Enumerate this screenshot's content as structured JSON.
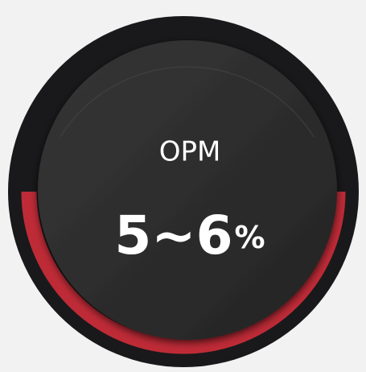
{
  "label": "OPM",
  "value_text": "5~6",
  "unit": "%"
}
